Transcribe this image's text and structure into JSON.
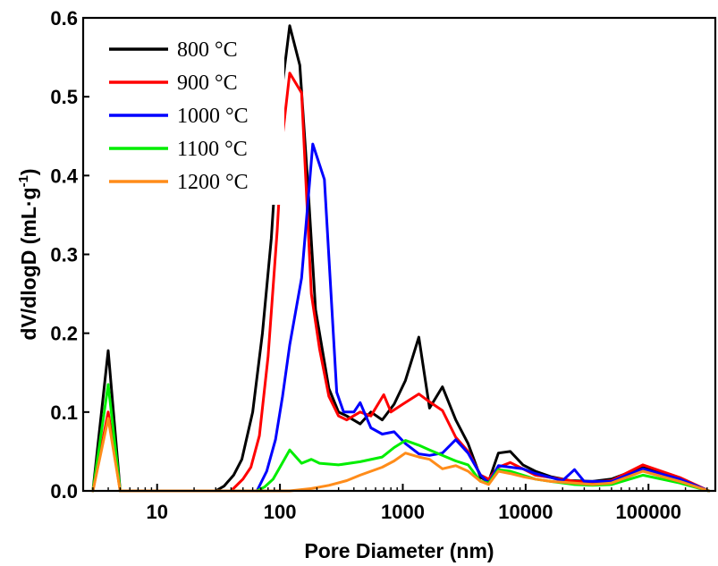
{
  "chart_data": {
    "type": "line",
    "title": "",
    "xlabel": "Pore Diameter (nm)",
    "ylabel": "dV/dlogD (mL·g⁻¹)",
    "ylabel_main": "dV/dlogD (mL·g",
    "ylabel_sup": "-1",
    "ylabel_end": ")",
    "x_scale": "log",
    "xlim": [
      2.5,
      350000
    ],
    "ylim": [
      0,
      0.6
    ],
    "x_ticks": [
      10,
      100,
      1000,
      10000,
      100000
    ],
    "x_tick_labels": [
      "10",
      "100",
      "1000",
      "10000",
      "100000"
    ],
    "y_ticks": [
      0.0,
      0.1,
      0.2,
      0.3,
      0.4,
      0.5,
      0.6
    ],
    "y_tick_labels": [
      "0.0",
      "0.1",
      "0.2",
      "0.3",
      "0.4",
      "0.5",
      "0.6"
    ],
    "grid": false,
    "legend_position": "top-left",
    "series": [
      {
        "name": "800 °C",
        "color": "#000000",
        "points": [
          [
            3,
            0
          ],
          [
            4,
            0.178
          ],
          [
            5,
            0
          ],
          [
            30,
            0
          ],
          [
            35,
            0.006
          ],
          [
            42,
            0.02
          ],
          [
            49,
            0.04
          ],
          [
            60,
            0.1
          ],
          [
            72,
            0.2
          ],
          [
            85,
            0.32
          ],
          [
            100,
            0.49
          ],
          [
            120,
            0.59
          ],
          [
            145,
            0.54
          ],
          [
            170,
            0.38
          ],
          [
            195,
            0.23
          ],
          [
            250,
            0.13
          ],
          [
            300,
            0.1
          ],
          [
            350,
            0.095
          ],
          [
            450,
            0.085
          ],
          [
            550,
            0.1
          ],
          [
            680,
            0.09
          ],
          [
            850,
            0.11
          ],
          [
            1050,
            0.14
          ],
          [
            1350,
            0.195
          ],
          [
            1650,
            0.105
          ],
          [
            2100,
            0.132
          ],
          [
            2700,
            0.09
          ],
          [
            3400,
            0.06
          ],
          [
            4300,
            0.017
          ],
          [
            5000,
            0.012
          ],
          [
            6000,
            0.048
          ],
          [
            7500,
            0.05
          ],
          [
            9500,
            0.033
          ],
          [
            12000,
            0.025
          ],
          [
            16000,
            0.018
          ],
          [
            23000,
            0.013
          ],
          [
            35000,
            0.012
          ],
          [
            50000,
            0.015
          ],
          [
            90000,
            0.03
          ],
          [
            180000,
            0.015
          ],
          [
            310000,
            0.0
          ]
        ]
      },
      {
        "name": "900 °C",
        "color": "#ff0000",
        "points": [
          [
            3,
            0
          ],
          [
            4,
            0.1
          ],
          [
            5,
            0
          ],
          [
            40,
            0
          ],
          [
            50,
            0.015
          ],
          [
            58,
            0.03
          ],
          [
            68,
            0.07
          ],
          [
            80,
            0.17
          ],
          [
            95,
            0.33
          ],
          [
            105,
            0.45
          ],
          [
            120,
            0.53
          ],
          [
            150,
            0.505
          ],
          [
            180,
            0.25
          ],
          [
            210,
            0.18
          ],
          [
            250,
            0.12
          ],
          [
            300,
            0.095
          ],
          [
            350,
            0.09
          ],
          [
            450,
            0.1
          ],
          [
            550,
            0.095
          ],
          [
            700,
            0.122
          ],
          [
            800,
            0.1
          ],
          [
            1000,
            0.11
          ],
          [
            1350,
            0.123
          ],
          [
            1650,
            0.113
          ],
          [
            2100,
            0.102
          ],
          [
            2700,
            0.068
          ],
          [
            3400,
            0.05
          ],
          [
            4300,
            0.02
          ],
          [
            5000,
            0.015
          ],
          [
            6000,
            0.03
          ],
          [
            7500,
            0.036
          ],
          [
            9500,
            0.028
          ],
          [
            12000,
            0.02
          ],
          [
            16000,
            0.017
          ],
          [
            25000,
            0.012
          ],
          [
            35000,
            0.011
          ],
          [
            50000,
            0.013
          ],
          [
            90000,
            0.033
          ],
          [
            180000,
            0.017
          ],
          [
            310000,
            0.0
          ]
        ]
      },
      {
        "name": "1000 °C",
        "color": "#0000ff",
        "points": [
          [
            65,
            0
          ],
          [
            78,
            0.025
          ],
          [
            92,
            0.065
          ],
          [
            105,
            0.12
          ],
          [
            120,
            0.185
          ],
          [
            150,
            0.27
          ],
          [
            185,
            0.44
          ],
          [
            230,
            0.395
          ],
          [
            290,
            0.125
          ],
          [
            330,
            0.1
          ],
          [
            400,
            0.1
          ],
          [
            450,
            0.112
          ],
          [
            550,
            0.08
          ],
          [
            680,
            0.072
          ],
          [
            850,
            0.075
          ],
          [
            1050,
            0.06
          ],
          [
            1350,
            0.047
          ],
          [
            1650,
            0.045
          ],
          [
            2100,
            0.048
          ],
          [
            2700,
            0.065
          ],
          [
            3400,
            0.048
          ],
          [
            4300,
            0.02
          ],
          [
            5000,
            0.01
          ],
          [
            6000,
            0.032
          ],
          [
            7500,
            0.03
          ],
          [
            9500,
            0.028
          ],
          [
            12000,
            0.022
          ],
          [
            16000,
            0.017
          ],
          [
            20000,
            0.013
          ],
          [
            25000,
            0.027
          ],
          [
            30000,
            0.012
          ],
          [
            50000,
            0.012
          ],
          [
            90000,
            0.028
          ],
          [
            180000,
            0.015
          ],
          [
            310000,
            0.0
          ]
        ]
      },
      {
        "name": "1100 °C",
        "color": "#00ee00",
        "points": [
          [
            3,
            0
          ],
          [
            4,
            0.135
          ],
          [
            5,
            0
          ],
          [
            65,
            0
          ],
          [
            75,
            0.005
          ],
          [
            88,
            0.015
          ],
          [
            100,
            0.03
          ],
          [
            120,
            0.052
          ],
          [
            150,
            0.035
          ],
          [
            180,
            0.04
          ],
          [
            210,
            0.035
          ],
          [
            300,
            0.033
          ],
          [
            450,
            0.037
          ],
          [
            680,
            0.043
          ],
          [
            850,
            0.055
          ],
          [
            1050,
            0.064
          ],
          [
            1350,
            0.058
          ],
          [
            1650,
            0.052
          ],
          [
            2100,
            0.045
          ],
          [
            2700,
            0.038
          ],
          [
            3400,
            0.033
          ],
          [
            4300,
            0.012
          ],
          [
            5000,
            0.01
          ],
          [
            6000,
            0.027
          ],
          [
            7500,
            0.025
          ],
          [
            9500,
            0.02
          ],
          [
            12000,
            0.015
          ],
          [
            16000,
            0.012
          ],
          [
            25000,
            0.008
          ],
          [
            35000,
            0.007
          ],
          [
            50000,
            0.008
          ],
          [
            90000,
            0.02
          ],
          [
            180000,
            0.01
          ],
          [
            310000,
            0.0
          ]
        ]
      },
      {
        "name": "1200 °C",
        "color": "#ff8c1a",
        "points": [
          [
            3,
            0
          ],
          [
            4,
            0.092
          ],
          [
            5,
            0
          ],
          [
            120,
            0
          ],
          [
            180,
            0.003
          ],
          [
            250,
            0.007
          ],
          [
            350,
            0.013
          ],
          [
            450,
            0.02
          ],
          [
            680,
            0.03
          ],
          [
            850,
            0.038
          ],
          [
            1050,
            0.048
          ],
          [
            1350,
            0.043
          ],
          [
            1650,
            0.04
          ],
          [
            2100,
            0.028
          ],
          [
            2700,
            0.032
          ],
          [
            3400,
            0.025
          ],
          [
            4300,
            0.012
          ],
          [
            5000,
            0.008
          ],
          [
            6000,
            0.025
          ],
          [
            7500,
            0.022
          ],
          [
            9500,
            0.018
          ],
          [
            12000,
            0.015
          ],
          [
            16000,
            0.012
          ],
          [
            25000,
            0.01
          ],
          [
            35000,
            0.008
          ],
          [
            50000,
            0.01
          ],
          [
            90000,
            0.025
          ],
          [
            180000,
            0.012
          ],
          [
            310000,
            0.0
          ]
        ]
      }
    ]
  }
}
